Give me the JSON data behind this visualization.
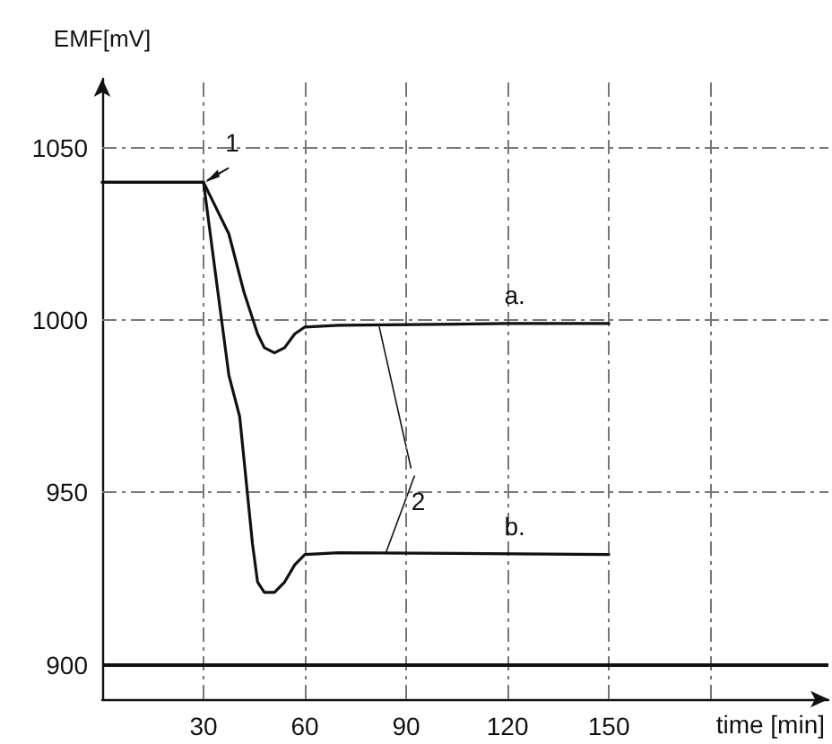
{
  "chart_data": {
    "type": "line",
    "xlabel": "time [min]",
    "ylabel": "EMF[mV]",
    "xlim": [
      0,
      215
    ],
    "ylim": [
      890,
      1070
    ],
    "xticks": [
      30,
      60,
      90,
      120,
      150,
      {
        "value": 180,
        "label": null
      }
    ],
    "yticks": [
      900,
      950,
      1000,
      1050
    ],
    "grid": true,
    "marker": "none",
    "line_style": "solid",
    "series": [
      {
        "color": "#111111",
        "x": [
          0,
          30,
          33,
          37.5,
          42,
          46,
          48,
          51,
          54,
          57,
          60,
          70,
          120,
          150
        ],
        "values": [
          1040,
          1040,
          1034,
          1025,
          1008,
          996,
          992,
          990.5,
          992,
          996,
          998,
          998.5,
          999,
          999
        ]
      },
      {
        "color": "#111111",
        "x": [
          0,
          30,
          34,
          37.5,
          40.7,
          44.5,
          46,
          48,
          51,
          54,
          57,
          60,
          70,
          150
        ],
        "values": [
          1040,
          1040,
          1010,
          984,
          972,
          935,
          924,
          921,
          921,
          924,
          929,
          932,
          932.5,
          932
        ]
      }
    ],
    "ref_lines": [
      {
        "axis": "y",
        "value": 900,
        "color": "#111111",
        "line_style": "solid"
      }
    ],
    "annotations": [
      {
        "text": "1",
        "x": 30,
        "y": 1040
      },
      {
        "text": "a.",
        "x": 120,
        "y": 999
      },
      {
        "text": "b.",
        "x": 120,
        "y": 932
      },
      {
        "text": "2",
        "x": 84,
        "y": 932
      }
    ]
  }
}
